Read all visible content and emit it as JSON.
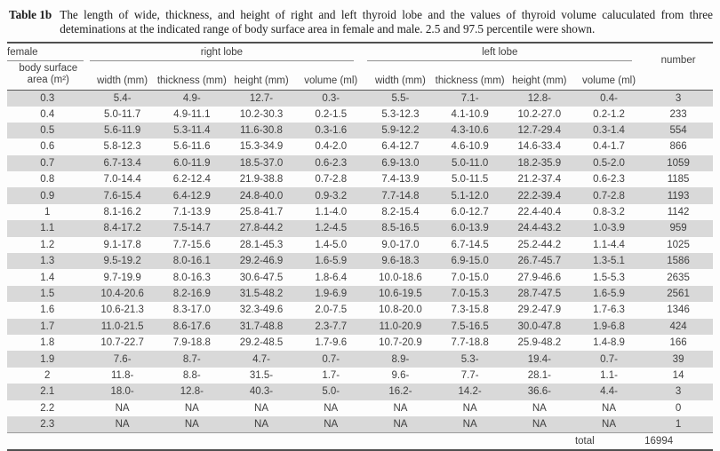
{
  "caption": {
    "label": "Table 1b",
    "text": "The length of wide, thickness, and height of right and left thyroid lobe and the values of thyroid volume caluculated from three deteminations at the indicated range of body surface area in female and male. 2.5 and 97.5 percentile were shown."
  },
  "table": {
    "group_headers": {
      "female": "female",
      "right_lobe": "right lobe",
      "left_lobe": "left lobe",
      "number": "number"
    },
    "row_header_label": "body surface area (m²)",
    "measure_columns": [
      "width (mm)",
      "thickness (mm)",
      "height (mm)",
      "volume (ml)",
      "width (mm)",
      "thickness (mm)",
      "height (mm)",
      "volume (ml)"
    ],
    "rows": [
      {
        "bsa": "0.3",
        "values": [
          "5.4-",
          "4.9-",
          "12.7-",
          "0.3-",
          "5.5-",
          "7.1-",
          "12.8-",
          "0.4-"
        ],
        "number": "3"
      },
      {
        "bsa": "0.4",
        "values": [
          "5.0-11.7",
          "4.9-11.1",
          "10.2-30.3",
          "0.2-1.5",
          "5.3-12.3",
          "4.1-10.9",
          "10.2-27.0",
          "0.2-1.2"
        ],
        "number": "233"
      },
      {
        "bsa": "0.5",
        "values": [
          "5.6-11.9",
          "5.3-11.4",
          "11.6-30.8",
          "0.3-1.6",
          "5.9-12.2",
          "4.3-10.6",
          "12.7-29.4",
          "0.3-1.4"
        ],
        "number": "554"
      },
      {
        "bsa": "0.6",
        "values": [
          "5.8-12.3",
          "5.6-11.6",
          "15.3-34.9",
          "0.4-2.0",
          "6.4-12.7",
          "4.6-10.9",
          "14.6-33.4",
          "0.4-1.7"
        ],
        "number": "866"
      },
      {
        "bsa": "0.7",
        "values": [
          "6.7-13.4",
          "6.0-11.9",
          "18.5-37.0",
          "0.6-2.3",
          "6.9-13.0",
          "5.0-11.0",
          "18.2-35.9",
          "0.5-2.0"
        ],
        "number": "1059"
      },
      {
        "bsa": "0.8",
        "values": [
          "7.0-14.4",
          "6.2-12.4",
          "21.9-38.8",
          "0.7-2.8",
          "7.4-13.9",
          "5.0-11.5",
          "21.2-37.4",
          "0.6-2.3"
        ],
        "number": "1185"
      },
      {
        "bsa": "0.9",
        "values": [
          "7.6-15.4",
          "6.4-12.9",
          "24.8-40.0",
          "0.9-3.2",
          "7.7-14.8",
          "5.1-12.0",
          "22.2-39.4",
          "0.7-2.8"
        ],
        "number": "1193"
      },
      {
        "bsa": "1",
        "values": [
          "8.1-16.2",
          "7.1-13.9",
          "25.8-41.7",
          "1.1-4.0",
          "8.2-15.4",
          "6.0-12.7",
          "22.4-40.4",
          "0.8-3.2"
        ],
        "number": "1142"
      },
      {
        "bsa": "1.1",
        "values": [
          "8.4-17.2",
          "7.5-14.7",
          "27.8-44.2",
          "1.2-4.5",
          "8.5-16.5",
          "6.0-13.9",
          "24.4-43.2",
          "1.0-3.9"
        ],
        "number": "959"
      },
      {
        "bsa": "1.2",
        "values": [
          "9.1-17.8",
          "7.7-15.6",
          "28.1-45.3",
          "1.4-5.0",
          "9.0-17.0",
          "6.7-14.5",
          "25.2-44.2",
          "1.1-4.4"
        ],
        "number": "1025"
      },
      {
        "bsa": "1.3",
        "values": [
          "9.5-19.2",
          "8.0-16.1",
          "29.2-46.9",
          "1.6-5.9",
          "9.6-18.3",
          "6.9-15.0",
          "26.7-45.7",
          "1.3-5.1"
        ],
        "number": "1586"
      },
      {
        "bsa": "1.4",
        "values": [
          "9.7-19.9",
          "8.0-16.3",
          "30.6-47.5",
          "1.8-6.4",
          "10.0-18.6",
          "7.0-15.0",
          "27.9-46.6",
          "1.5-5.3"
        ],
        "number": "2635"
      },
      {
        "bsa": "1.5",
        "values": [
          "10.4-20.6",
          "8.2-16.9",
          "31.5-48.2",
          "1.9-6.9",
          "10.6-19.5",
          "7.0-15.3",
          "28.7-47.5",
          "1.6-5.9"
        ],
        "number": "2561"
      },
      {
        "bsa": "1.6",
        "values": [
          "10.6-21.3",
          "8.3-17.0",
          "32.3-49.6",
          "2.0-7.5",
          "10.8-20.0",
          "7.3-15.8",
          "29.2-47.9",
          "1.7-6.3"
        ],
        "number": "1346"
      },
      {
        "bsa": "1.7",
        "values": [
          "11.0-21.5",
          "8.6-17.6",
          "31.7-48.8",
          "2.3-7.7",
          "11.0-20.9",
          "7.5-16.5",
          "30.0-47.8",
          "1.9-6.8"
        ],
        "number": "424"
      },
      {
        "bsa": "1.8",
        "values": [
          "10.7-22.7",
          "7.9-18.8",
          "29.2-48.5",
          "1.7-9.6",
          "10.7-20.9",
          "7.7-18.8",
          "25.9-48.2",
          "1.4-8.9"
        ],
        "number": "166"
      },
      {
        "bsa": "1.9",
        "values": [
          "7.6-",
          "8.7-",
          "4.7-",
          "0.7-",
          "8.9-",
          "5.3-",
          "19.4-",
          "0.7-"
        ],
        "number": "39"
      },
      {
        "bsa": "2",
        "values": [
          "11.8-",
          "8.8-",
          "31.5-",
          "1.7-",
          "9.6-",
          "7.7-",
          "28.1-",
          "1.1-"
        ],
        "number": "14"
      },
      {
        "bsa": "2.1",
        "values": [
          "18.0-",
          "12.8-",
          "40.3-",
          "5.0-",
          "16.2-",
          "14.2-",
          "36.6-",
          "4.4-"
        ],
        "number": "3"
      },
      {
        "bsa": "2.2",
        "values": [
          "NA",
          "NA",
          "NA",
          "NA",
          "NA",
          "NA",
          "NA",
          "NA"
        ],
        "number": "0"
      },
      {
        "bsa": "2.3",
        "values": [
          "NA",
          "NA",
          "NA",
          "NA",
          "NA",
          "NA",
          "NA",
          "NA"
        ],
        "number": "1"
      }
    ],
    "total": {
      "label": "total",
      "number": "16994"
    }
  },
  "colors": {
    "stripe": "#d9d9d9",
    "rule_dark": "#4f4f4f",
    "rule_light": "#8f8f8f",
    "text": "#3f3f3f"
  }
}
